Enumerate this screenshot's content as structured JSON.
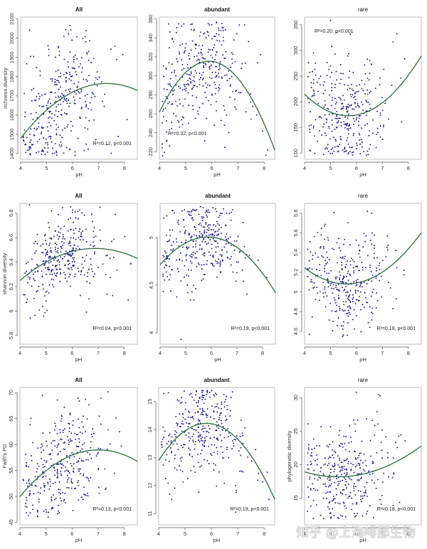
{
  "chart_data": [
    {
      "type": "scatter",
      "title": "All",
      "title_style": "bold",
      "xlabel": "pH",
      "ylabel": "richness diversity",
      "xlim": [
        4,
        8.5
      ],
      "ylim": [
        1370,
        2110
      ],
      "xticks": [
        4,
        5,
        6,
        7,
        8
      ],
      "yticks": [
        1400,
        1500,
        1600,
        1700,
        1800,
        1900,
        2000,
        2100
      ],
      "fit": {
        "type": "quadratic",
        "x": [
          4.0,
          5.0,
          6.0,
          7.0,
          7.3,
          8.0,
          8.5
        ],
        "y": [
          1480,
          1625,
          1720,
          1762,
          1765,
          1752,
          1728
        ]
      },
      "annotation": "R²=0.12, p<0.001",
      "annotation_position": "bottom-right",
      "points": {
        "n": 330,
        "x_center": 5.6,
        "x_spread": 0.9,
        "y_center": 1700,
        "y_spread": 150,
        "y_min": 1390,
        "y_max": 2095
      }
    },
    {
      "type": "scatter",
      "title": "abundant",
      "title_style": "bold",
      "xlabel": "pH",
      "ylabel": "",
      "xlim": [
        4,
        8.4
      ],
      "ylim": [
        212,
        362
      ],
      "xticks": [
        4,
        5,
        6,
        7,
        8
      ],
      "yticks": [
        220,
        240,
        260,
        280,
        300,
        320,
        340,
        360
      ],
      "fit": {
        "type": "quadratic",
        "x": [
          4.0,
          5.0,
          5.9,
          7.0,
          8.0,
          8.4
        ],
        "y": [
          262,
          302,
          318,
          296,
          248,
          223
        ]
      },
      "annotation": "R²=0.32, p<0.001",
      "annotation_position": "bottom-left",
      "points": {
        "n": 330,
        "x_center": 5.6,
        "x_spread": 0.9,
        "y_center": 310,
        "y_spread": 28,
        "y_min": 215,
        "y_max": 358
      }
    },
    {
      "type": "scatter",
      "title": "rare",
      "title_style": "normal",
      "xlabel": "pH",
      "ylabel": "",
      "xlim": [
        4,
        8.5
      ],
      "ylim": [
        88,
        365
      ],
      "xticks": [
        4,
        5,
        6,
        7,
        8
      ],
      "yticks": [
        100,
        150,
        200,
        250,
        300,
        350
      ],
      "fit": {
        "type": "quadratic",
        "x": [
          4.0,
          5.0,
          5.6,
          6.0,
          7.0,
          8.0,
          8.5
        ],
        "y": [
          215,
          180,
          172,
          174,
          200,
          250,
          290
        ]
      },
      "annotation": "R²=0.20, p<0.001",
      "annotation_position": "top-left",
      "points": {
        "n": 330,
        "x_center": 5.6,
        "x_spread": 0.9,
        "y_center": 185,
        "y_spread": 50,
        "y_min": 95,
        "y_max": 360
      }
    },
    {
      "type": "scatter",
      "title": "All",
      "title_style": "bold",
      "xlabel": "pH",
      "ylabel": "shannon diversity",
      "xlim": [
        4,
        8.5
      ],
      "ylim": [
        5.73,
        6.88
      ],
      "xticks": [
        4,
        5,
        6,
        7,
        8
      ],
      "yticks": [
        5.8,
        6.0,
        6.2,
        6.4,
        6.6,
        6.8
      ],
      "fit": {
        "type": "quadratic",
        "x": [
          4.0,
          5.0,
          6.0,
          6.8,
          7.5,
          8.5
        ],
        "y": [
          6.25,
          6.4,
          6.49,
          6.51,
          6.5,
          6.43
        ]
      },
      "annotation": "R²=0.04, p<0.001",
      "annotation_position": "bottom-right",
      "points": {
        "n": 330,
        "x_center": 5.6,
        "x_spread": 0.9,
        "y_center": 6.45,
        "y_spread": 0.17,
        "y_min": 5.75,
        "y_max": 6.87
      }
    },
    {
      "type": "scatter",
      "title": "abundant",
      "title_style": "bold",
      "xlabel": "pH",
      "ylabel": "",
      "xlim": [
        4,
        8.5
      ],
      "ylim": [
        3.88,
        5.36
      ],
      "xticks": [
        4,
        5,
        6,
        7,
        8
      ],
      "yticks": [
        4.0,
        4.5,
        5.0
      ],
      "fit": {
        "type": "quadratic",
        "x": [
          4.0,
          5.0,
          5.9,
          7.0,
          8.0,
          8.5
        ],
        "y": [
          4.71,
          4.95,
          5.02,
          4.88,
          4.62,
          4.43
        ]
      },
      "annotation": "R²=0.19, p<0.001",
      "annotation_position": "bottom-right",
      "points": {
        "n": 330,
        "x_center": 5.6,
        "x_spread": 0.9,
        "y_center": 4.98,
        "y_spread": 0.2,
        "y_min": 3.9,
        "y_max": 5.33
      }
    },
    {
      "type": "scatter",
      "title": "rare",
      "title_style": "normal",
      "xlabel": "pH",
      "ylabel": "",
      "xlim": [
        4,
        8.5
      ],
      "ylim": [
        4.47,
        5.9
      ],
      "xticks": [
        4,
        5,
        6,
        7,
        8
      ],
      "yticks": [
        4.6,
        4.8,
        5.0,
        5.2,
        5.4,
        5.6,
        5.8
      ],
      "fit": {
        "type": "quadratic",
        "x": [
          4.0,
          5.0,
          5.5,
          6.0,
          7.0,
          8.0,
          8.5
        ],
        "y": [
          5.24,
          5.12,
          5.08,
          5.09,
          5.2,
          5.43,
          5.61
        ]
      },
      "annotation": "R²=0.18, p<0.001",
      "annotation_position": "bottom-right",
      "points": {
        "n": 330,
        "x_center": 5.6,
        "x_spread": 0.9,
        "y_center": 5.1,
        "y_spread": 0.22,
        "y_min": 4.52,
        "y_max": 5.84
      }
    },
    {
      "type": "scatter",
      "title": "All",
      "title_style": "bold",
      "xlabel": "pH",
      "ylabel": "Faith's PD",
      "xlim": [
        4,
        8.5
      ],
      "ylim": [
        44.5,
        71
      ],
      "xticks": [
        4,
        5,
        6,
        7,
        8
      ],
      "yticks": [
        45,
        50,
        55,
        60,
        65,
        70
      ],
      "fit": {
        "type": "quadratic",
        "x": [
          4.0,
          5.0,
          6.0,
          7.0,
          7.5,
          8.5
        ],
        "y": [
          49.8,
          55.3,
          57.8,
          58.8,
          58.8,
          56.8
        ]
      },
      "annotation": "R²=0.13, p<0.001",
      "annotation_position": "bottom-right",
      "points": {
        "n": 330,
        "x_center": 5.6,
        "x_spread": 0.9,
        "y_center": 57,
        "y_spread": 4.5,
        "y_min": 46,
        "y_max": 70.3
      }
    },
    {
      "type": "scatter",
      "title": "abundant",
      "title_style": "bold",
      "xlabel": "pH",
      "ylabel": "",
      "xlim": [
        4,
        8.4
      ],
      "ylim": [
        10.6,
        15.5
      ],
      "xticks": [
        4,
        5,
        6,
        7,
        8
      ],
      "yticks": [
        11,
        12,
        13,
        14,
        15
      ],
      "fit": {
        "type": "quadratic",
        "x": [
          4.0,
          5.0,
          5.9,
          7.0,
          8.0,
          8.4
        ],
        "y": [
          12.9,
          13.95,
          14.22,
          13.65,
          12.3,
          11.5
        ]
      },
      "annotation": "R²=0.19, p<0.001",
      "annotation_position": "bottom-right",
      "points": {
        "n": 330,
        "x_center": 5.6,
        "x_spread": 0.9,
        "y_center": 14.0,
        "y_spread": 0.85,
        "y_min": 10.8,
        "y_max": 15.4
      }
    },
    {
      "type": "scatter",
      "title": "rare",
      "title_style": "normal",
      "xlabel": "pH",
      "ylabel": "phylogenetic diversity",
      "xlim": [
        4,
        8.5
      ],
      "ylim": [
        11,
        31.5
      ],
      "xticks": [
        4,
        5,
        6,
        7,
        8
      ],
      "yticks": [
        15,
        20,
        25,
        30
      ],
      "fit": {
        "type": "quadratic",
        "x": [
          4.0,
          5.0,
          5.5,
          6.0,
          7.0,
          8.0,
          8.5
        ],
        "y": [
          18.8,
          18.35,
          18.3,
          18.4,
          19.3,
          21.4,
          22.9
        ]
      },
      "annotation": "R²=0.18, p<0.001",
      "annotation_position": "bottom-right",
      "points": {
        "n": 330,
        "x_center": 5.6,
        "x_spread": 0.9,
        "y_center": 19,
        "y_spread": 3.2,
        "y_min": 11.5,
        "y_max": 31
      }
    }
  ],
  "watermark": "知乎 @上海啡那生物"
}
